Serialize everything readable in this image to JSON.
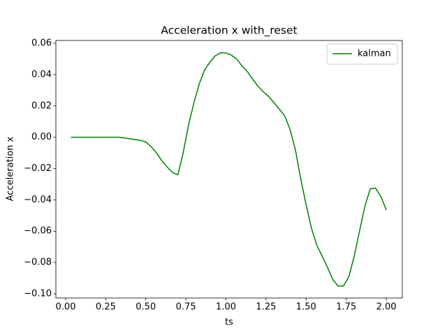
{
  "chart_data": {
    "type": "line",
    "title": "Acceleration x with_reset",
    "x_label": "ts",
    "y_label": "Acceleration x",
    "x": [
      0.033,
      0.067,
      0.1,
      0.133,
      0.167,
      0.2,
      0.233,
      0.267,
      0.3,
      0.333,
      0.367,
      0.4,
      0.433,
      0.467,
      0.5,
      0.533,
      0.567,
      0.6,
      0.633,
      0.667,
      0.7,
      0.733,
      0.767,
      0.8,
      0.833,
      0.867,
      0.9,
      0.933,
      0.967,
      1.0,
      1.033,
      1.067,
      1.1,
      1.133,
      1.167,
      1.2,
      1.233,
      1.267,
      1.3,
      1.333,
      1.367,
      1.4,
      1.433,
      1.467,
      1.5,
      1.533,
      1.567,
      1.6,
      1.633,
      1.667,
      1.7,
      1.733,
      1.767,
      1.8,
      1.833,
      1.867,
      1.9,
      1.933,
      1.967,
      2.0
    ],
    "series": [
      {
        "name": "kalman",
        "color": "#008000",
        "values": [
          0,
          0,
          0,
          0,
          0,
          0,
          0,
          0,
          0,
          0,
          -0.0005,
          -0.001,
          -0.0015,
          -0.002,
          -0.003,
          -0.006,
          -0.01,
          -0.015,
          -0.019,
          -0.0225,
          -0.024,
          -0.01,
          0.008,
          0.022,
          0.034,
          0.043,
          0.048,
          0.052,
          0.054,
          0.0538,
          0.0525,
          0.05,
          0.0455,
          0.042,
          0.037,
          0.0325,
          0.029,
          0.026,
          0.022,
          0.018,
          0.0135,
          0.005,
          -0.008,
          -0.027,
          -0.043,
          -0.058,
          -0.069,
          -0.076,
          -0.083,
          -0.091,
          -0.095,
          -0.095,
          -0.089,
          -0.076,
          -0.06,
          -0.044,
          -0.033,
          -0.0325,
          -0.038,
          -0.0465
        ]
      }
    ],
    "xlim": [
      -0.061,
      2.1
    ],
    "ylim": [
      -0.1027,
      0.0618
    ],
    "xticks": [
      {
        "value": 0,
        "label": "0.00"
      },
      {
        "value": 0.25,
        "label": "0.25"
      },
      {
        "value": 0.5,
        "label": "0.50"
      },
      {
        "value": 0.75,
        "label": "0.75"
      },
      {
        "value": 1,
        "label": "1.00"
      },
      {
        "value": 1.25,
        "label": "1.25"
      },
      {
        "value": 1.5,
        "label": "1.50"
      },
      {
        "value": 1.75,
        "label": "1.75"
      },
      {
        "value": 2,
        "label": "2.00"
      }
    ],
    "yticks": [
      {
        "value": -0.1,
        "label": "−0.10"
      },
      {
        "value": -0.08,
        "label": "−0.08"
      },
      {
        "value": -0.06,
        "label": "−0.06"
      },
      {
        "value": -0.04,
        "label": "−0.04"
      },
      {
        "value": -0.02,
        "label": "−0.02"
      },
      {
        "value": 0,
        "label": "0.00"
      },
      {
        "value": 0.02,
        "label": "0.02"
      },
      {
        "value": 0.04,
        "label": "0.04"
      },
      {
        "value": 0.06,
        "label": "0.06"
      }
    ],
    "grid": false,
    "legend_position": "upper-right"
  }
}
